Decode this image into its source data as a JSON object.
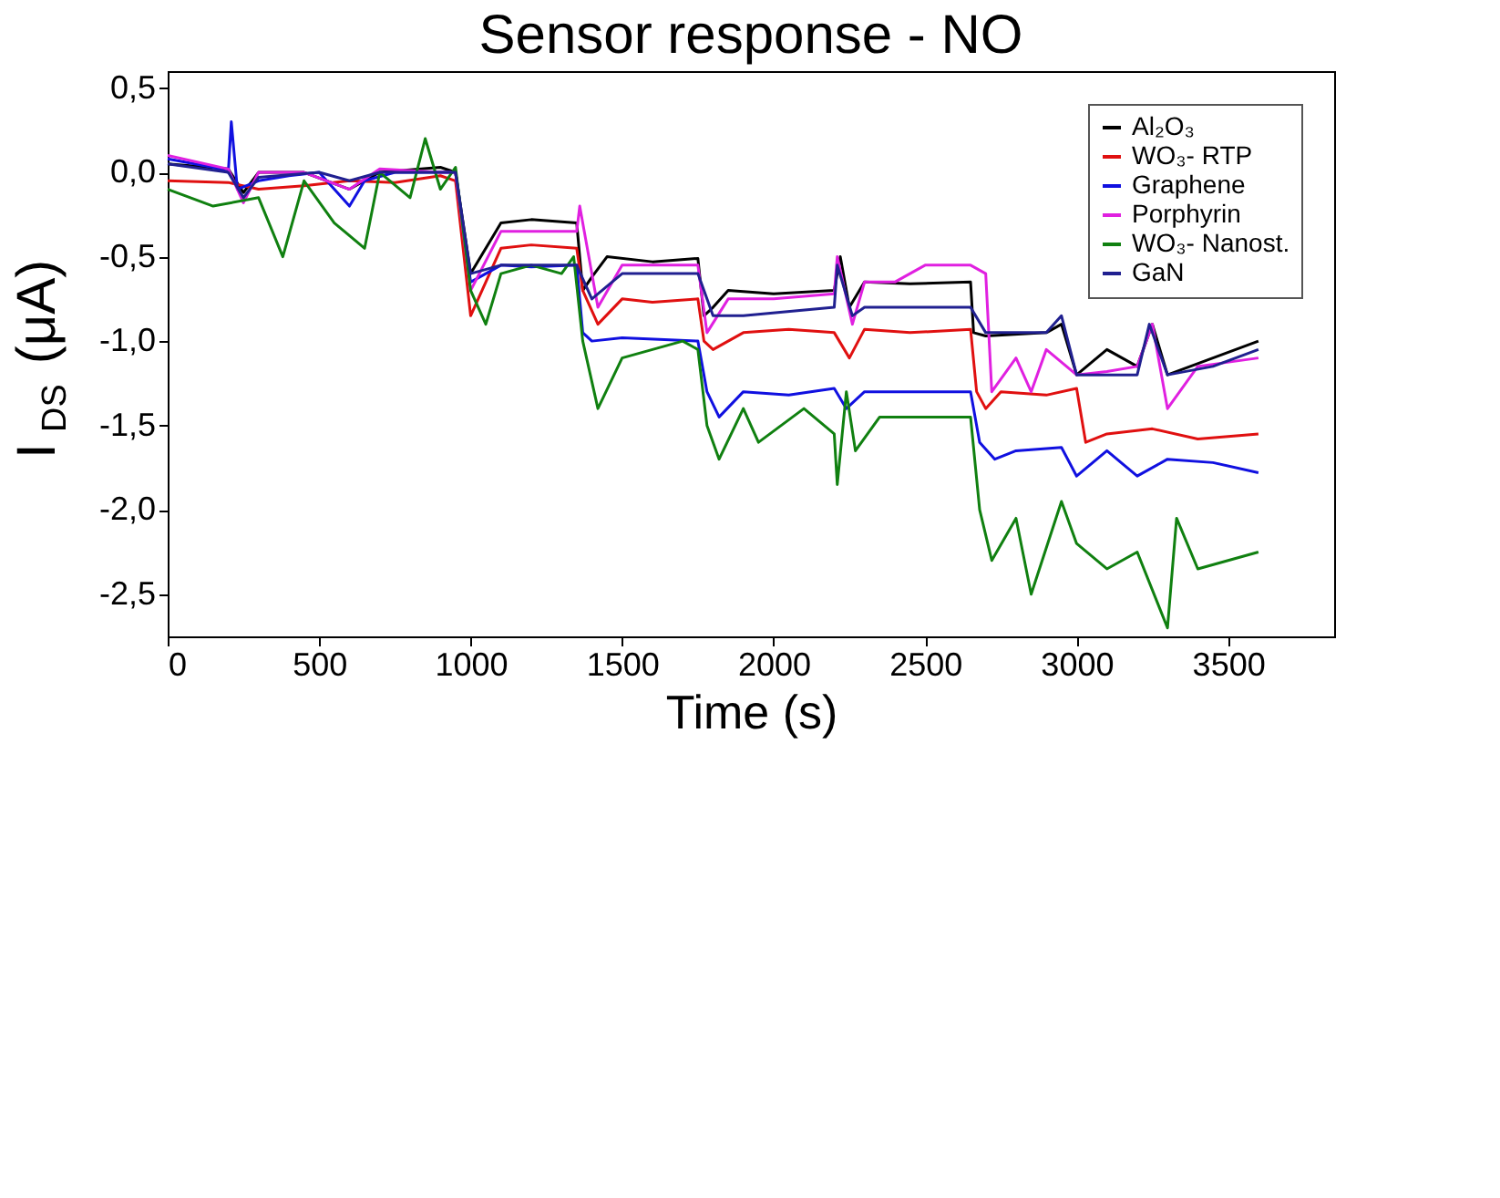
{
  "chart_data": {
    "type": "line",
    "title": "Sensor response - NO",
    "xlabel": "Time (s)",
    "ylabel": "I$_{DS}$ (μA)",
    "xlim": [
      0,
      3850
    ],
    "xticks": [
      0,
      500,
      1000,
      1500,
      2000,
      2500,
      3000,
      3500
    ],
    "ylim": [
      -2.75,
      0.6
    ],
    "yticks": [
      {
        "value": 0.5,
        "label": "0,5"
      },
      {
        "value": 0,
        "label": "0,0"
      },
      {
        "value": -0.5,
        "label": "-0,5"
      },
      {
        "value": -1,
        "label": "-1,0"
      },
      {
        "value": -1.5,
        "label": "-1,5"
      },
      {
        "value": -2,
        "label": "-2,0"
      },
      {
        "value": -2.5,
        "label": "-2,5"
      }
    ],
    "grid": false,
    "legend": "top right",
    "marker": "none",
    "line_style": "solid",
    "series": [
      {
        "name": "Al₂O₃",
        "color": "#000000",
        "x": [
          0,
          200,
          250,
          300,
          450,
          600,
          700,
          900,
          950,
          1000,
          1100,
          1200,
          1350,
          1370,
          1400,
          1450,
          1600,
          1750,
          1770,
          1800,
          1850,
          2000,
          2200,
          2220,
          2250,
          2300,
          2450,
          2650,
          2660,
          2700,
          2900,
          2950,
          3000,
          3100,
          3200,
          3250,
          3300,
          3450,
          3600
        ],
        "values": [
          0.05,
          0.02,
          -0.12,
          0.0,
          0.0,
          -0.1,
          0.0,
          0.03,
          0.0,
          -0.6,
          -0.3,
          -0.28,
          -0.3,
          -0.7,
          -0.62,
          -0.5,
          -0.53,
          -0.51,
          -0.85,
          -0.8,
          -0.7,
          -0.72,
          -0.7,
          -0.5,
          -0.8,
          -0.65,
          -0.66,
          -0.65,
          -0.95,
          -0.97,
          -0.95,
          -0.9,
          -1.2,
          -1.05,
          -1.15,
          -0.9,
          -1.2,
          -1.1,
          -1.0
        ]
      },
      {
        "name": "WO₃- RTP",
        "color": "#e01010",
        "x": [
          0,
          200,
          300,
          450,
          600,
          750,
          900,
          950,
          1000,
          1100,
          1200,
          1350,
          1370,
          1420,
          1500,
          1600,
          1750,
          1770,
          1800,
          1900,
          2050,
          2200,
          2250,
          2300,
          2450,
          2650,
          2670,
          2700,
          2750,
          2900,
          3000,
          3030,
          3100,
          3250,
          3400,
          3600
        ],
        "values": [
          -0.05,
          -0.06,
          -0.1,
          -0.08,
          -0.05,
          -0.06,
          -0.02,
          -0.05,
          -0.85,
          -0.45,
          -0.43,
          -0.45,
          -0.7,
          -0.9,
          -0.75,
          -0.77,
          -0.75,
          -1.0,
          -1.05,
          -0.95,
          -0.93,
          -0.95,
          -1.1,
          -0.93,
          -0.95,
          -0.93,
          -1.3,
          -1.4,
          -1.3,
          -1.32,
          -1.28,
          -1.6,
          -1.55,
          -1.52,
          -1.58,
          -1.55
        ]
      },
      {
        "name": "Graphene",
        "color": "#1010e0",
        "x": [
          0,
          150,
          200,
          210,
          230,
          300,
          400,
          500,
          600,
          650,
          750,
          900,
          950,
          1000,
          1100,
          1200,
          1350,
          1370,
          1400,
          1500,
          1750,
          1780,
          1820,
          1900,
          2050,
          2200,
          2240,
          2300,
          2500,
          2650,
          2680,
          2730,
          2800,
          2950,
          3000,
          3100,
          3200,
          3300,
          3450,
          3600
        ],
        "values": [
          0.08,
          0.03,
          0.0,
          0.3,
          -0.1,
          -0.05,
          -0.02,
          0.0,
          -0.2,
          -0.05,
          0.0,
          0.0,
          0.0,
          -0.65,
          -0.55,
          -0.56,
          -0.55,
          -0.95,
          -1.0,
          -0.98,
          -1.0,
          -1.3,
          -1.45,
          -1.3,
          -1.32,
          -1.28,
          -1.4,
          -1.3,
          -1.3,
          -1.3,
          -1.6,
          -1.7,
          -1.65,
          -1.63,
          -1.8,
          -1.65,
          -1.8,
          -1.7,
          -1.72,
          -1.78
        ]
      },
      {
        "name": "Porphyrin",
        "color": "#e020e0",
        "x": [
          0,
          200,
          250,
          300,
          450,
          600,
          700,
          900,
          950,
          1000,
          1100,
          1350,
          1360,
          1420,
          1500,
          1750,
          1780,
          1850,
          2000,
          2200,
          2210,
          2260,
          2300,
          2400,
          2500,
          2650,
          2700,
          2720,
          2800,
          2850,
          2900,
          3000,
          3100,
          3200,
          3250,
          3300,
          3400,
          3600
        ],
        "values": [
          0.1,
          0.02,
          -0.18,
          0.0,
          0.0,
          -0.1,
          0.02,
          0.0,
          0.0,
          -0.7,
          -0.35,
          -0.35,
          -0.2,
          -0.8,
          -0.55,
          -0.55,
          -0.95,
          -0.75,
          -0.75,
          -0.72,
          -0.5,
          -0.9,
          -0.65,
          -0.65,
          -0.55,
          -0.55,
          -0.6,
          -1.3,
          -1.1,
          -1.3,
          -1.05,
          -1.2,
          -1.18,
          -1.15,
          -0.9,
          -1.4,
          -1.15,
          -1.1
        ]
      },
      {
        "name": "WO₃- Nanost.",
        "color": "#108010",
        "x": [
          0,
          150,
          300,
          380,
          450,
          550,
          650,
          700,
          800,
          850,
          900,
          950,
          1000,
          1050,
          1100,
          1200,
          1300,
          1340,
          1370,
          1420,
          1500,
          1700,
          1750,
          1780,
          1820,
          1900,
          1950,
          2100,
          2200,
          2210,
          2240,
          2270,
          2350,
          2650,
          2680,
          2720,
          2800,
          2850,
          2950,
          3000,
          3100,
          3200,
          3300,
          3330,
          3400,
          3600
        ],
        "values": [
          -0.1,
          -0.2,
          -0.15,
          -0.5,
          -0.05,
          -0.3,
          -0.45,
          0.0,
          -0.15,
          0.2,
          -0.1,
          0.03,
          -0.7,
          -0.9,
          -0.6,
          -0.55,
          -0.6,
          -0.5,
          -1.0,
          -1.4,
          -1.1,
          -1.0,
          -1.05,
          -1.5,
          -1.7,
          -1.4,
          -1.6,
          -1.4,
          -1.55,
          -1.85,
          -1.3,
          -1.65,
          -1.45,
          -1.45,
          -2.0,
          -2.3,
          -2.05,
          -2.5,
          -1.95,
          -2.2,
          -2.35,
          -2.25,
          -2.7,
          -2.05,
          -2.35,
          -2.25
        ]
      },
      {
        "name": "GaN",
        "color": "#202090",
        "x": [
          0,
          200,
          250,
          300,
          500,
          600,
          700,
          900,
          950,
          1000,
          1100,
          1350,
          1400,
          1500,
          1750,
          1800,
          1900,
          2200,
          2210,
          2260,
          2300,
          2650,
          2700,
          2900,
          2950,
          3000,
          3200,
          3240,
          3300,
          3450,
          3600
        ],
        "values": [
          0.05,
          0.0,
          -0.15,
          -0.03,
          0.0,
          -0.05,
          0.0,
          0.0,
          0.0,
          -0.6,
          -0.55,
          -0.55,
          -0.75,
          -0.6,
          -0.6,
          -0.85,
          -0.85,
          -0.8,
          -0.55,
          -0.85,
          -0.8,
          -0.8,
          -0.95,
          -0.95,
          -0.85,
          -1.2,
          -1.2,
          -0.9,
          -1.2,
          -1.15,
          -1.05
        ]
      }
    ]
  }
}
